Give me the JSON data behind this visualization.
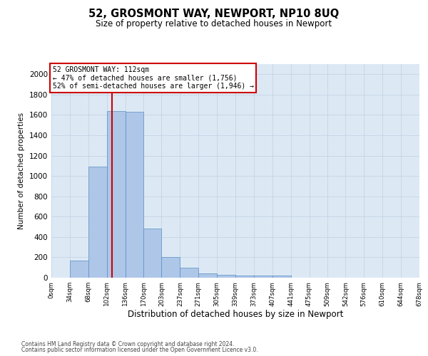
{
  "title": "52, GROSMONT WAY, NEWPORT, NP10 8UQ",
  "subtitle": "Size of property relative to detached houses in Newport",
  "xlabel": "Distribution of detached houses by size in Newport",
  "ylabel": "Number of detached properties",
  "footer_line1": "Contains HM Land Registry data © Crown copyright and database right 2024.",
  "footer_line2": "Contains public sector information licensed under the Open Government Licence v3.0.",
  "bar_edges": [
    0,
    34,
    68,
    102,
    136,
    170,
    203,
    237,
    271,
    305,
    339,
    373,
    407,
    441,
    475,
    509,
    542,
    576,
    610,
    644,
    678
  ],
  "bar_heights": [
    0,
    165,
    1090,
    1640,
    1630,
    480,
    200,
    100,
    45,
    30,
    20,
    20,
    20,
    0,
    0,
    0,
    0,
    0,
    0,
    0
  ],
  "bar_color": "#aec6e8",
  "bar_edgecolor": "#5a8fc2",
  "bar_linewidth": 0.5,
  "ref_line_x": 112,
  "ref_line_color": "#cc0000",
  "annotation_text": "52 GROSMONT WAY: 112sqm\n← 47% of detached houses are smaller (1,756)\n52% of semi-detached houses are larger (1,946) →",
  "annotation_box_edgecolor": "#cc0000",
  "annotation_box_facecolor": "#ffffff",
  "ylim": [
    0,
    2100
  ],
  "yticks": [
    0,
    200,
    400,
    600,
    800,
    1000,
    1200,
    1400,
    1600,
    1800,
    2000
  ],
  "bg_color": "#ffffff",
  "axes_bg_color": "#dce9f5",
  "grid_color": "#c0cfe0",
  "tick_labels": [
    "0sqm",
    "34sqm",
    "68sqm",
    "102sqm",
    "136sqm",
    "170sqm",
    "203sqm",
    "237sqm",
    "271sqm",
    "305sqm",
    "339sqm",
    "373sqm",
    "407sqm",
    "441sqm",
    "475sqm",
    "509sqm",
    "542sqm",
    "576sqm",
    "610sqm",
    "644sqm",
    "678sqm"
  ]
}
